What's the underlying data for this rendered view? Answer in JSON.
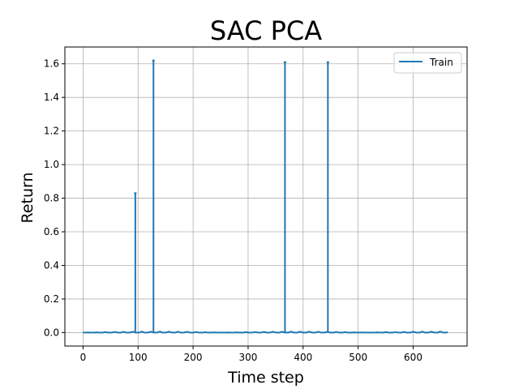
{
  "chart_data": {
    "type": "line",
    "title": "SAC PCA",
    "xlabel": "Time step",
    "ylabel": "Return",
    "xlim": [
      -33,
      698
    ],
    "ylim": [
      -0.08,
      1.7
    ],
    "xticks": [
      0,
      100,
      200,
      300,
      400,
      500,
      600
    ],
    "yticks": [
      0.0,
      0.2,
      0.4,
      0.6,
      0.8,
      1.0,
      1.2,
      1.4,
      1.6
    ],
    "grid": true,
    "legend_position": "top-right",
    "series": [
      {
        "name": "Train",
        "color": "#1f77b4",
        "x_start": 0,
        "x_end": 665,
        "baseline": 0.0,
        "spikes": [
          {
            "x": 95,
            "y": 0.83
          },
          {
            "x": 128,
            "y": 1.62
          },
          {
            "x": 367,
            "y": 1.61
          },
          {
            "x": 445,
            "y": 1.61
          }
        ]
      }
    ]
  }
}
